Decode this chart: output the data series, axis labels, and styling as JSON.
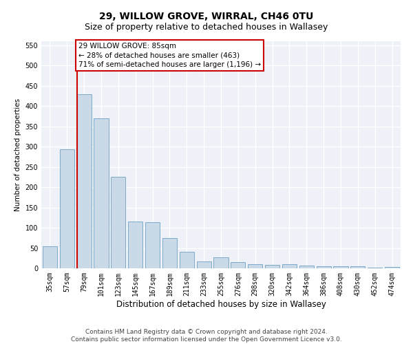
{
  "title": "29, WILLOW GROVE, WIRRAL, CH46 0TU",
  "subtitle": "Size of property relative to detached houses in Wallasey",
  "xlabel": "Distribution of detached houses by size in Wallasey",
  "ylabel": "Number of detached properties",
  "bar_color": "#c9d9e8",
  "bar_edge_color": "#7aaac8",
  "background_color": "#ffffff",
  "plot_background": "#eef2f8",
  "grid_color": "#ffffff",
  "annotation_line_color": "#cc0000",
  "annotation_box_color": "#cc0000",
  "annotation_text": "29 WILLOW GROVE: 85sqm\n← 28% of detached houses are smaller (463)\n71% of semi-detached houses are larger (1,196) →",
  "categories": [
    "35sqm",
    "57sqm",
    "79sqm",
    "101sqm",
    "123sqm",
    "145sqm",
    "167sqm",
    "189sqm",
    "211sqm",
    "233sqm",
    "255sqm",
    "276sqm",
    "298sqm",
    "320sqm",
    "342sqm",
    "364sqm",
    "386sqm",
    "408sqm",
    "430sqm",
    "452sqm",
    "474sqm"
  ],
  "values": [
    55,
    293,
    430,
    370,
    225,
    115,
    113,
    75,
    40,
    17,
    27,
    15,
    10,
    9,
    10,
    7,
    5,
    5,
    5,
    1,
    4
  ],
  "ylim": [
    0,
    560
  ],
  "yticks": [
    0,
    50,
    100,
    150,
    200,
    250,
    300,
    350,
    400,
    450,
    500,
    550
  ],
  "property_bin_index": 2,
  "footer_line1": "Contains HM Land Registry data © Crown copyright and database right 2024.",
  "footer_line2": "Contains public sector information licensed under the Open Government Licence v3.0.",
  "title_fontsize": 10,
  "subtitle_fontsize": 9,
  "annotation_fontsize": 7.5,
  "footer_fontsize": 6.5,
  "xlabel_fontsize": 8.5,
  "ylabel_fontsize": 7.5,
  "tick_fontsize": 7
}
